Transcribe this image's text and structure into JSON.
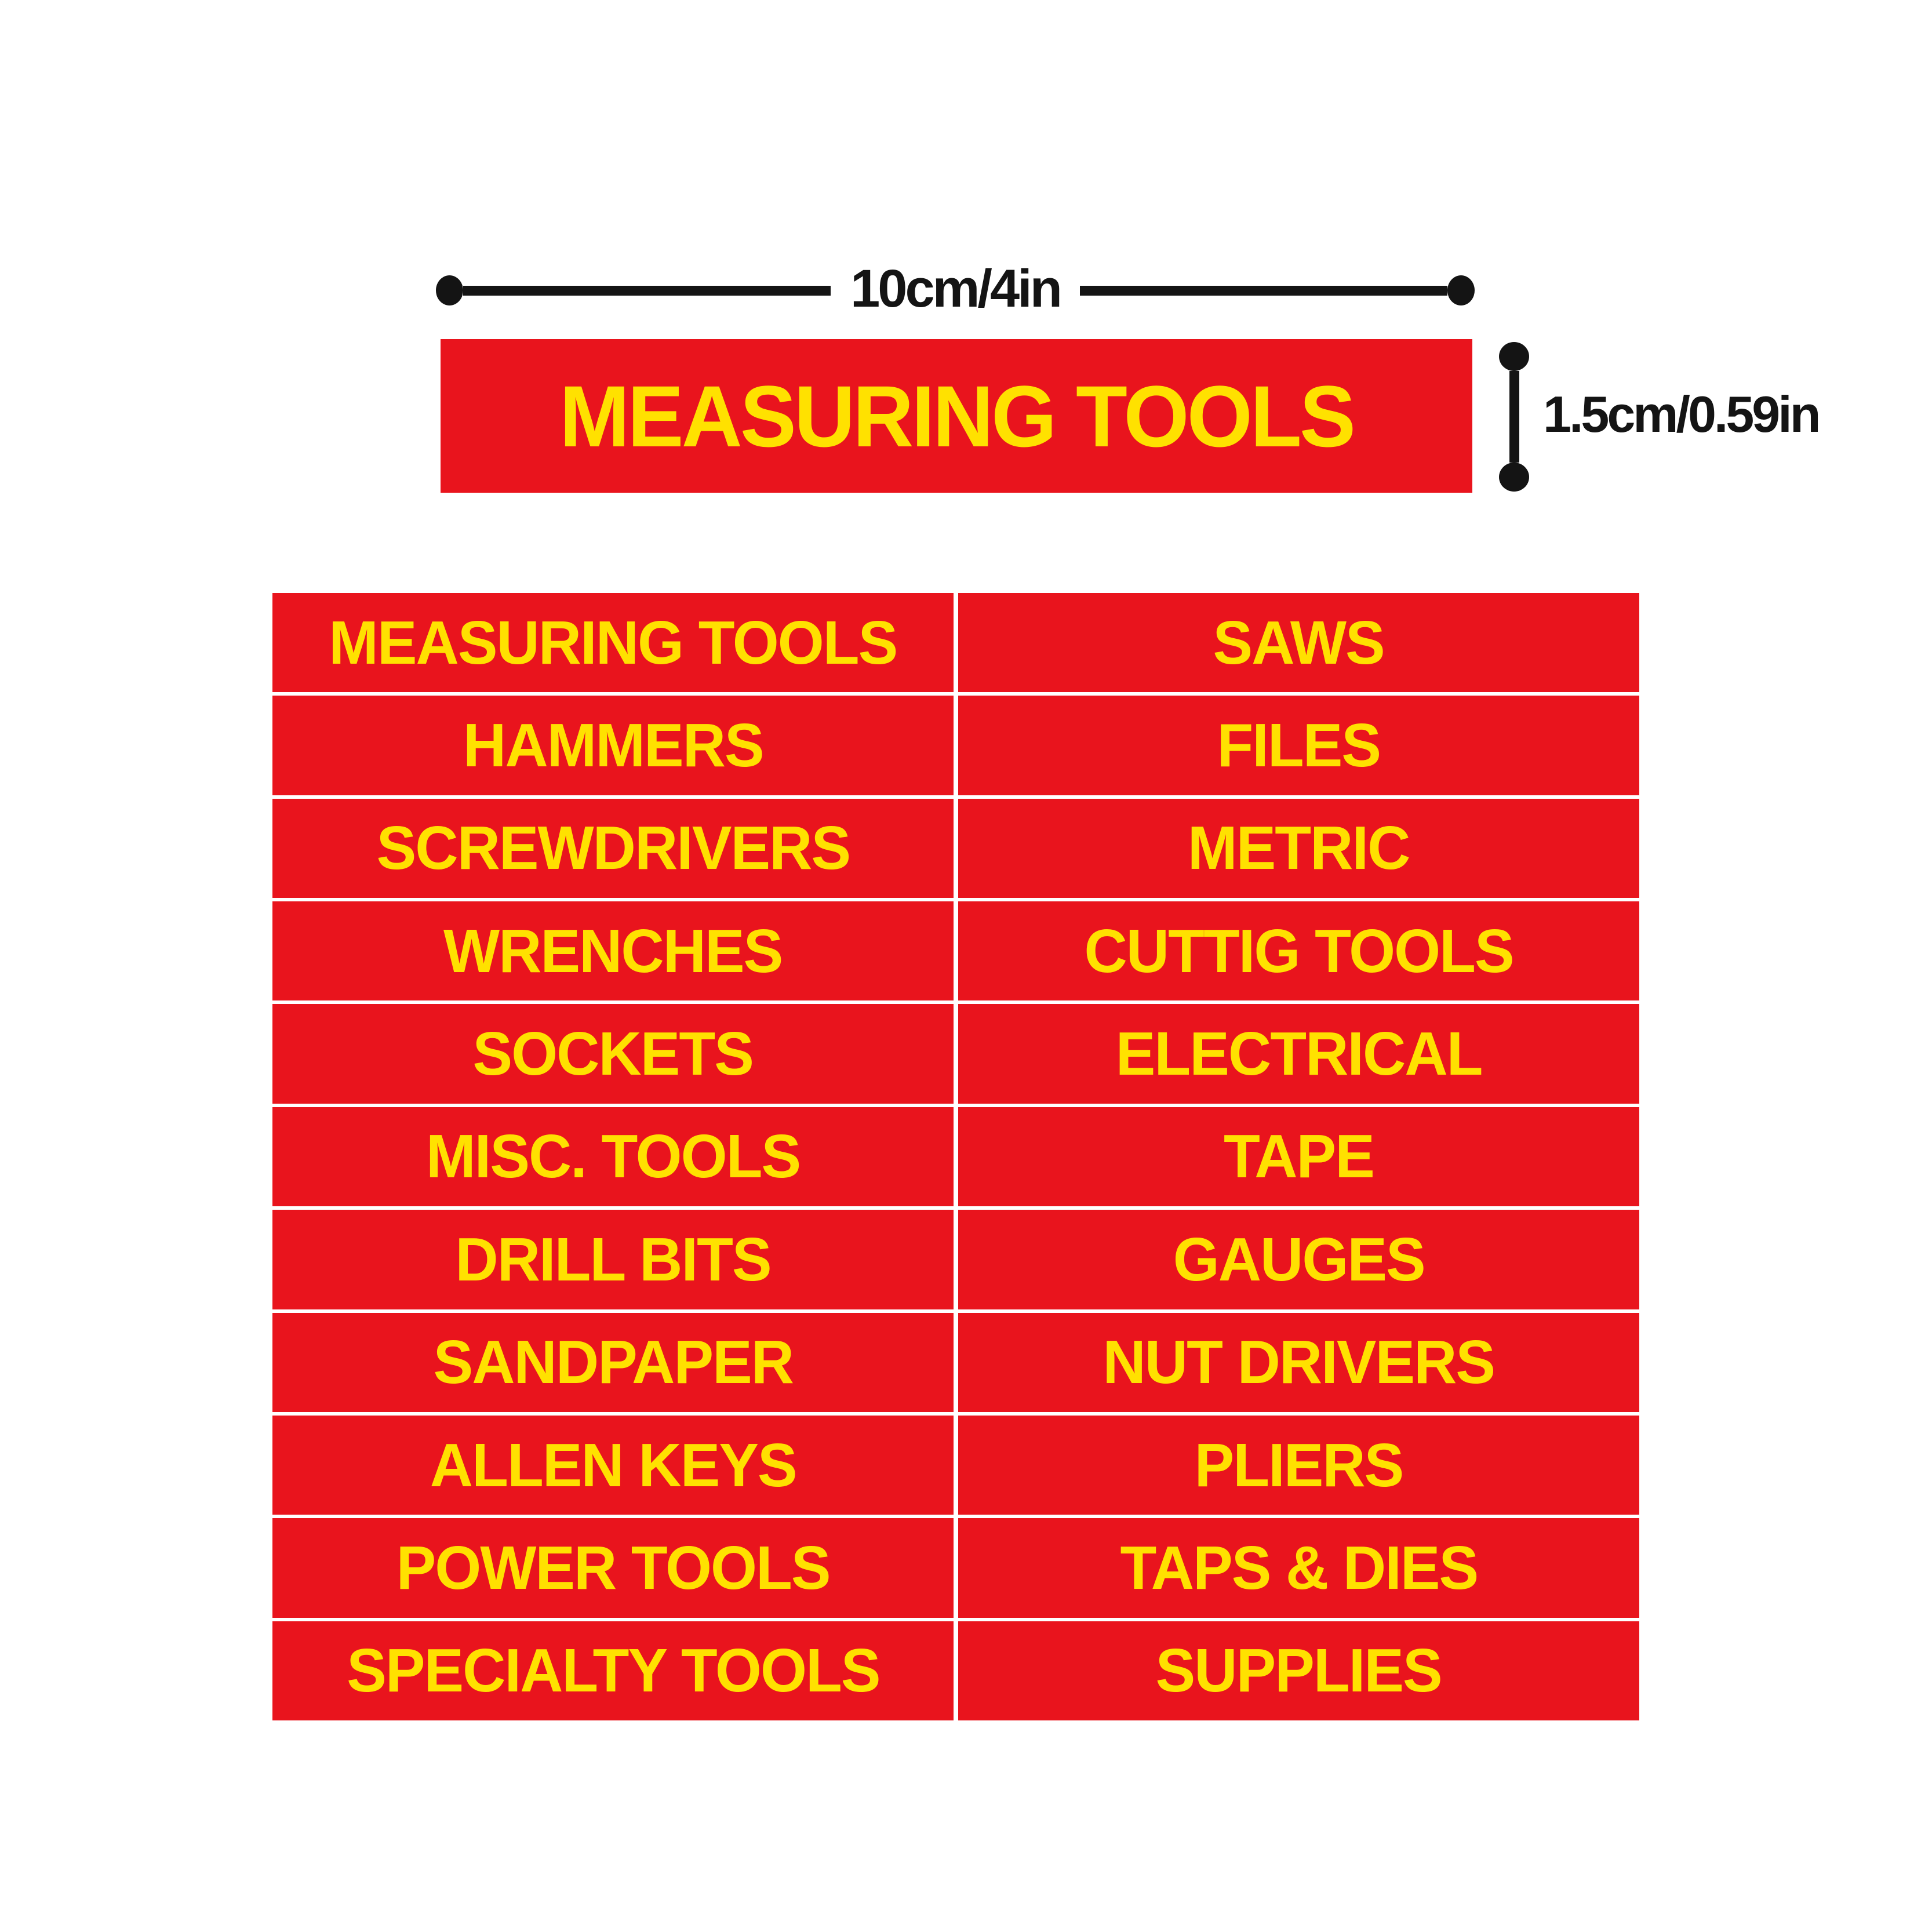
{
  "colors": {
    "red": "#e9141d",
    "yellow": "#ffe100",
    "ink": "#141414",
    "paper": "#ffffff"
  },
  "size_guide": {
    "width_label": "10cm/4in",
    "height_label": "1.5cm/0.59in"
  },
  "sample_sticker": {
    "title": "MEASURING TOOLS"
  },
  "stickers": {
    "left_column": [
      "MEASURING TOOLS",
      "HAMMERS",
      "SCREWDRIVERS",
      "WRENCHES",
      "SOCKETS",
      "MISC. TOOLS",
      "DRILL BITS",
      "SANDPAPER",
      "ALLEN KEYS",
      "POWER TOOLS",
      "SPECIALTY TOOLS"
    ],
    "right_column": [
      "SAWS",
      "FILES",
      "METRIC",
      "CUTTIG TOOLS",
      "ELECTRICAL",
      "TAPE",
      "GAUGES",
      "NUT DRIVERS",
      "PLIERS",
      "TAPS & DIES",
      "SUPPLIES"
    ]
  }
}
